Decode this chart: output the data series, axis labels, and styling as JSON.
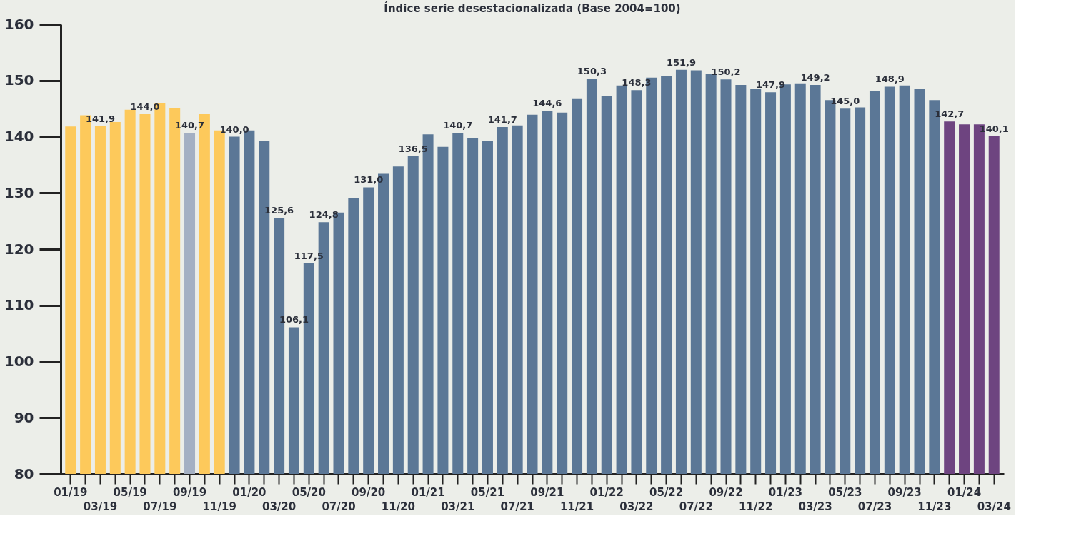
{
  "chart_data": {
    "type": "bar",
    "title": "Índice serie desestacionalizada (Base 2004=100)",
    "categories": [
      "01/19",
      null,
      "03/19",
      null,
      "05/19",
      null,
      "07/19",
      null,
      "09/19",
      null,
      "11/19",
      null,
      "01/20",
      null,
      "03/20",
      null,
      "05/20",
      null,
      "07/20",
      null,
      "09/20",
      null,
      "11/20",
      null,
      "01/21",
      null,
      "03/21",
      null,
      "05/21",
      null,
      "07/21",
      null,
      "09/21",
      null,
      "11/21",
      null,
      "01/22",
      null,
      "03/22",
      null,
      "05/22",
      null,
      "07/22",
      null,
      "09/22",
      null,
      "11/22",
      null,
      "01/23",
      null,
      "03/23",
      null,
      "05/23",
      null,
      "07/23",
      null,
      "09/23",
      null,
      "11/23",
      null,
      "01/24",
      null,
      "03/24"
    ],
    "values": [
      141.8,
      143.8,
      141.9,
      142.6,
      144.8,
      144.0,
      146.0,
      145.1,
      140.7,
      144.0,
      141.1,
      140.0,
      141.1,
      139.3,
      125.6,
      106.1,
      117.5,
      124.8,
      126.5,
      129.1,
      131.0,
      133.4,
      134.7,
      136.5,
      140.4,
      138.2,
      140.7,
      139.8,
      139.3,
      141.7,
      142.0,
      143.9,
      144.6,
      144.3,
      146.7,
      150.3,
      147.2,
      149.1,
      148.3,
      150.5,
      150.8,
      151.9,
      151.8,
      151.1,
      150.2,
      149.2,
      148.5,
      147.9,
      149.3,
      149.5,
      149.2,
      146.5,
      145.0,
      145.2,
      148.2,
      148.9,
      149.1,
      148.5,
      146.5,
      142.7,
      142.2,
      142.2,
      140.1
    ],
    "colors": [
      "#fdc95b",
      "#fdc95b",
      "#fdc95b",
      "#fdc95b",
      "#fdc95b",
      "#fdc95b",
      "#fdc95b",
      "#fdc95b",
      "#a4b0c3",
      "#fdc95b",
      "#fdc95b",
      "#5b7796",
      "#5b7796",
      "#5b7796",
      "#5b7796",
      "#5b7796",
      "#5b7796",
      "#5b7796",
      "#5b7796",
      "#5b7796",
      "#5b7796",
      "#5b7796",
      "#5b7796",
      "#5b7796",
      "#5b7796",
      "#5b7796",
      "#5b7796",
      "#5b7796",
      "#5b7796",
      "#5b7796",
      "#5b7796",
      "#5b7796",
      "#5b7796",
      "#5b7796",
      "#5b7796",
      "#5b7796",
      "#5b7796",
      "#5b7796",
      "#5b7796",
      "#5b7796",
      "#5b7796",
      "#5b7796",
      "#5b7796",
      "#5b7796",
      "#5b7796",
      "#5b7796",
      "#5b7796",
      "#5b7796",
      "#5b7796",
      "#5b7796",
      "#5b7796",
      "#5b7796",
      "#5b7796",
      "#5b7796",
      "#5b7796",
      "#5b7796",
      "#5b7796",
      "#5b7796",
      "#5b7796",
      "#6e4480",
      "#6e4480",
      "#6e4480",
      "#6e4480"
    ],
    "value_labels": [
      null,
      null,
      "141,9",
      null,
      null,
      "144,0",
      null,
      null,
      "140,7",
      null,
      null,
      "140,0",
      null,
      null,
      "125,6",
      "106,1",
      "117,5",
      "124,8",
      null,
      null,
      "131,0",
      null,
      null,
      "136,5",
      null,
      null,
      "140,7",
      null,
      null,
      "141,7",
      null,
      null,
      "144,6",
      null,
      null,
      "150,3",
      null,
      null,
      "148,3",
      null,
      null,
      "151,9",
      null,
      null,
      "150,2",
      null,
      null,
      "147,9",
      null,
      null,
      "149,2",
      null,
      "145,0",
      null,
      null,
      "148,9",
      null,
      null,
      null,
      "142,7",
      null,
      null,
      "140,1"
    ],
    "ylim": [
      80,
      160
    ],
    "yticks": [
      80,
      90,
      100,
      110,
      120,
      130,
      140,
      150,
      160
    ],
    "grid": false
  }
}
